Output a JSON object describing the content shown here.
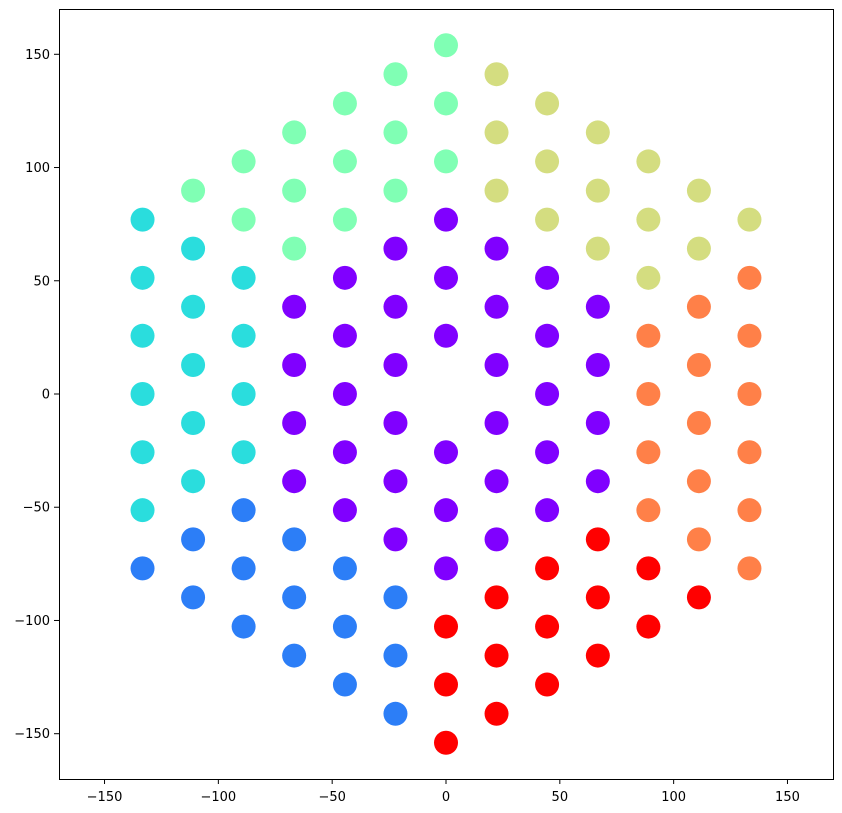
{
  "chart_data": {
    "type": "scatter",
    "title": "",
    "xlabel": "",
    "ylabel": "",
    "xlim": [
      -170,
      170
    ],
    "ylim": [
      -170,
      170
    ],
    "xticks": [
      -150,
      -100,
      -50,
      0,
      50,
      100,
      150
    ],
    "yticks": [
      -150,
      -100,
      -50,
      0,
      50,
      100,
      150
    ],
    "grid": false,
    "legend": "none",
    "series": [
      {
        "color": "#8000ff",
        "points": [
          [
            0,
            25.7
          ],
          [
            22.2,
            12.8
          ],
          [
            22.2,
            -12.8
          ],
          [
            0,
            -25.7
          ],
          [
            -22.2,
            -12.8
          ],
          [
            -22.2,
            12.8
          ],
          [
            0,
            51.3
          ],
          [
            22.2,
            38.5
          ],
          [
            44.4,
            25.7
          ],
          [
            44.4,
            0
          ],
          [
            44.4,
            -25.7
          ],
          [
            22.2,
            -38.5
          ],
          [
            0,
            -51.3
          ],
          [
            -22.2,
            -38.5
          ],
          [
            -44.4,
            -25.7
          ],
          [
            -44.4,
            0
          ],
          [
            -44.4,
            25.7
          ],
          [
            -22.2,
            38.5
          ],
          [
            0,
            77
          ],
          [
            22.2,
            64.2
          ],
          [
            44.4,
            51.3
          ],
          [
            66.7,
            38.5
          ],
          [
            66.7,
            12.8
          ],
          [
            66.7,
            -12.8
          ],
          [
            66.7,
            -38.5
          ],
          [
            44.4,
            -51.3
          ],
          [
            22.2,
            -64.2
          ],
          [
            0,
            -77
          ],
          [
            -22.2,
            -64.2
          ],
          [
            -44.4,
            -51.3
          ],
          [
            -66.7,
            -38.5
          ],
          [
            -66.7,
            -12.8
          ],
          [
            -66.7,
            12.8
          ],
          [
            -66.7,
            38.5
          ],
          [
            -44.4,
            51.3
          ],
          [
            -22.2,
            64.2
          ]
        ]
      },
      {
        "color": "#2c7ef7",
        "points": [
          [
            -88.9,
            -51.3
          ],
          [
            -111.1,
            -64.2
          ],
          [
            -133.3,
            -77
          ],
          [
            -88.9,
            -77
          ],
          [
            -66.7,
            -64.2
          ],
          [
            -111.1,
            -89.8
          ],
          [
            -88.9,
            -102.7
          ],
          [
            -66.7,
            -89.8
          ],
          [
            -44.4,
            -77
          ],
          [
            -66.7,
            -115.5
          ],
          [
            -44.4,
            -102.7
          ],
          [
            -22.2,
            -89.8
          ],
          [
            -44.4,
            -128.3
          ],
          [
            -22.2,
            -115.5
          ],
          [
            -22.2,
            -141.2
          ]
        ]
      },
      {
        "color": "#2adddd",
        "points": [
          [
            -133.3,
            77
          ],
          [
            -133.3,
            51.3
          ],
          [
            -133.3,
            25.7
          ],
          [
            -133.3,
            0
          ],
          [
            -133.3,
            -25.7
          ],
          [
            -133.3,
            -51.3
          ],
          [
            -111.1,
            64.2
          ],
          [
            -111.1,
            38.5
          ],
          [
            -111.1,
            12.8
          ],
          [
            -111.1,
            -12.8
          ],
          [
            -111.1,
            -38.5
          ],
          [
            -88.9,
            51.3
          ],
          [
            -88.9,
            25.7
          ],
          [
            -88.9,
            0
          ],
          [
            -88.9,
            -25.7
          ]
        ]
      },
      {
        "color": "#80ffb4",
        "points": [
          [
            0,
            154
          ],
          [
            -22.2,
            141.2
          ],
          [
            -44.4,
            128.3
          ],
          [
            0,
            128.3
          ],
          [
            -66.7,
            115.5
          ],
          [
            -22.2,
            115.5
          ],
          [
            -88.9,
            102.7
          ],
          [
            -44.4,
            102.7
          ],
          [
            0,
            102.7
          ],
          [
            -111.1,
            89.8
          ],
          [
            -66.7,
            89.8
          ],
          [
            -22.2,
            89.8
          ],
          [
            -88.9,
            77
          ],
          [
            -44.4,
            77
          ],
          [
            -66.7,
            64.2
          ]
        ]
      },
      {
        "color": "#d4dd80",
        "points": [
          [
            22.2,
            141.2
          ],
          [
            44.4,
            128.3
          ],
          [
            22.2,
            115.5
          ],
          [
            66.7,
            115.5
          ],
          [
            44.4,
            102.7
          ],
          [
            88.9,
            102.7
          ],
          [
            22.2,
            89.8
          ],
          [
            66.7,
            89.8
          ],
          [
            111.1,
            89.8
          ],
          [
            44.4,
            77
          ],
          [
            88.9,
            77
          ],
          [
            133.3,
            77
          ],
          [
            66.7,
            64.2
          ],
          [
            111.1,
            64.2
          ],
          [
            88.9,
            51.3
          ]
        ]
      },
      {
        "color": "#ff8048",
        "points": [
          [
            133.3,
            51.3
          ],
          [
            133.3,
            25.7
          ],
          [
            133.3,
            0
          ],
          [
            133.3,
            -25.7
          ],
          [
            133.3,
            -51.3
          ],
          [
            133.3,
            -77
          ],
          [
            111.1,
            38.5
          ],
          [
            111.1,
            12.8
          ],
          [
            111.1,
            -12.8
          ],
          [
            111.1,
            -38.5
          ],
          [
            111.1,
            -64.2
          ],
          [
            88.9,
            25.7
          ],
          [
            88.9,
            0
          ],
          [
            88.9,
            -25.7
          ],
          [
            88.9,
            -51.3
          ]
        ]
      },
      {
        "color": "#ff0000",
        "points": [
          [
            66.7,
            -64.2
          ],
          [
            44.4,
            -77
          ],
          [
            88.9,
            -77
          ],
          [
            22.2,
            -89.8
          ],
          [
            66.7,
            -89.8
          ],
          [
            111.1,
            -89.8
          ],
          [
            0,
            -102.7
          ],
          [
            44.4,
            -102.7
          ],
          [
            88.9,
            -102.7
          ],
          [
            22.2,
            -115.5
          ],
          [
            66.7,
            -115.5
          ],
          [
            0,
            -128.3
          ],
          [
            44.4,
            -128.3
          ],
          [
            22.2,
            -141.2
          ],
          [
            0,
            -154
          ]
        ]
      }
    ]
  }
}
